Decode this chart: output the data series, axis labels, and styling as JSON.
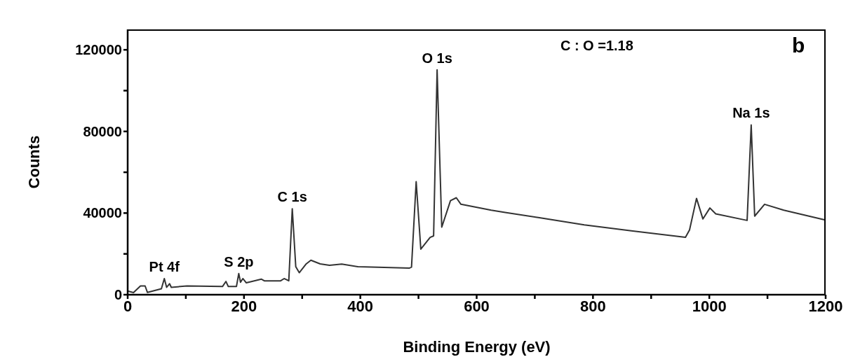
{
  "chart_data": {
    "type": "line",
    "xlabel": "Binding Energy (eV)",
    "ylabel": "Counts",
    "xlim": [
      0,
      1200
    ],
    "ylim": [
      0,
      130000
    ],
    "xticks": [
      0,
      {
        "value": 100,
        "label": null
      },
      200,
      {
        "value": 300,
        "label": null
      },
      400,
      {
        "value": 500,
        "label": null
      },
      600,
      {
        "value": 700,
        "label": null
      },
      800,
      {
        "value": 900,
        "label": null
      },
      1000,
      {
        "value": 1100,
        "label": null
      },
      1200
    ],
    "yticks": [
      0,
      {
        "value": 20000,
        "label": null
      },
      40000,
      {
        "value": 60000,
        "label": null
      },
      80000,
      {
        "value": 100000,
        "label": null
      },
      120000
    ],
    "grid": false,
    "legend": false,
    "marker": "none",
    "line_style": "solid",
    "series": [
      {
        "color": "#333333",
        "x": [
          0,
          10,
          22,
          30,
          34,
          58,
          63,
          67,
          72,
          75,
          102,
          163,
          169,
          173,
          187,
          191,
          194,
          198,
          204,
          230,
          235,
          263,
          269,
          277,
          283,
          289,
          295,
          307,
          315,
          331,
          347,
          368,
          396,
          430,
          484,
          488,
          496,
          504,
          520,
          526,
          532,
          540,
          555,
          565,
          573,
          625,
          649,
          706,
          785,
          866,
          959,
          966,
          978,
          989,
          1001,
          1011,
          1065,
          1072,
          1078,
          1095,
          1128,
          1198
        ],
        "values": [
          1800,
          1000,
          4300,
          4300,
          1100,
          2900,
          7900,
          3600,
          5400,
          3600,
          4300,
          4000,
          6500,
          4000,
          4000,
          10400,
          6100,
          7900,
          5800,
          7600,
          6800,
          6800,
          7900,
          6800,
          42100,
          13700,
          10800,
          15100,
          16900,
          15100,
          14400,
          15000,
          13700,
          13500,
          13000,
          13500,
          55400,
          22300,
          28100,
          28800,
          110200,
          33100,
          46100,
          47500,
          44300,
          41400,
          40300,
          37800,
          34200,
          31300,
          28100,
          31700,
          47200,
          37100,
          42500,
          39600,
          36400,
          83200,
          38500,
          44300,
          41400,
          36700
        ]
      }
    ],
    "annotations": [
      {
        "text": "Pt 4f",
        "x": 63,
        "y": 7900
      },
      {
        "text": "S 2p",
        "x": 191,
        "y": 10400
      },
      {
        "text": "C 1s",
        "x": 283,
        "y": 42100
      },
      {
        "text": "O 1s",
        "x": 532,
        "y": 110200
      },
      {
        "text": "Na 1s",
        "x": 1072,
        "y": 83200
      },
      "C : O =1.18",
      "b"
    ]
  }
}
